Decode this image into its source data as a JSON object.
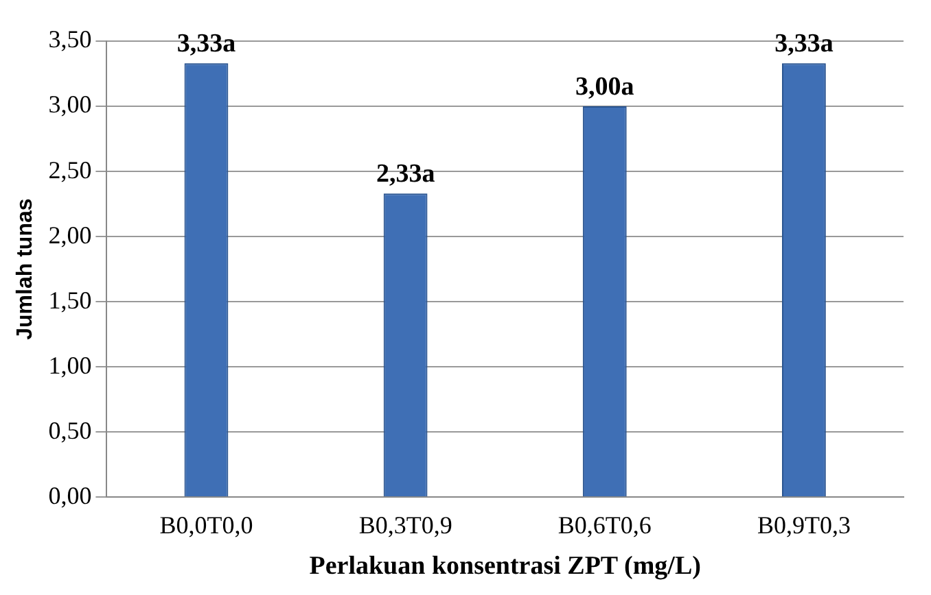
{
  "chart_data": {
    "type": "bar",
    "xlabel": "Perlakuan konsentrasi ZPT (mg/L)",
    "ylabel": "Jumlah tunas",
    "categories": [
      "B0,0T0,0",
      "B0,3T0,9",
      "B0,6T0,6",
      "B0,9T0,3"
    ],
    "values": [
      3.33,
      2.33,
      3.0,
      3.33
    ],
    "color": "#3f6fb5",
    "value_labels": [
      "3,33a",
      "2,33a",
      "3,00a",
      "3,33a"
    ],
    "ylim": [
      0,
      3.5
    ],
    "yticks": [
      {
        "value": 0,
        "label": "0,00"
      },
      {
        "value": 0.5,
        "label": "0,50"
      },
      {
        "value": 1,
        "label": "1,00"
      },
      {
        "value": 1.5,
        "label": "1,50"
      },
      {
        "value": 2,
        "label": "2,00"
      },
      {
        "value": 2.5,
        "label": "2,50"
      },
      {
        "value": 3,
        "label": "3,00"
      },
      {
        "value": 3.5,
        "label": "3,50"
      }
    ],
    "grid": "y",
    "legend": false
  }
}
